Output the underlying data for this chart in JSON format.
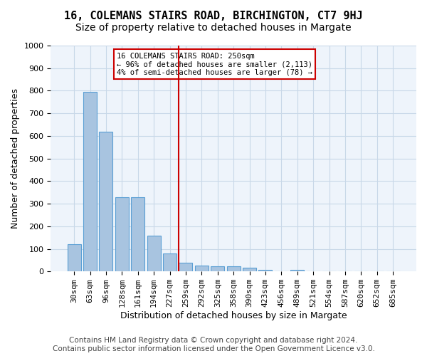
{
  "title": "16, COLEMANS STAIRS ROAD, BIRCHINGTON, CT7 9HJ",
  "subtitle": "Size of property relative to detached houses in Margate",
  "xlabel": "Distribution of detached houses by size in Margate",
  "ylabel": "Number of detached properties",
  "categories": [
    "30sqm",
    "63sqm",
    "96sqm",
    "128sqm",
    "161sqm",
    "194sqm",
    "227sqm",
    "259sqm",
    "292sqm",
    "325sqm",
    "358sqm",
    "390sqm",
    "423sqm",
    "456sqm",
    "489sqm",
    "521sqm",
    "554sqm",
    "587sqm",
    "620sqm",
    "652sqm",
    "685sqm"
  ],
  "values": [
    120,
    795,
    620,
    328,
    328,
    157,
    78,
    38,
    27,
    22,
    22,
    15,
    8,
    0,
    8,
    0,
    0,
    0,
    0,
    0,
    0
  ],
  "bar_color": "#a8c4e0",
  "bar_edge_color": "#5a9fd4",
  "vline_color": "#cc0000",
  "annotation_line1": "16 COLEMANS STAIRS ROAD: 250sqm",
  "annotation_line2": "← 96% of detached houses are smaller (2,113)",
  "annotation_line3": "4% of semi-detached houses are larger (78) →",
  "annotation_box_color": "#cc0000",
  "ylim": [
    0,
    1000
  ],
  "yticks": [
    0,
    100,
    200,
    300,
    400,
    500,
    600,
    700,
    800,
    900,
    1000
  ],
  "grid_color": "#c8d8e8",
  "bg_color": "#eef4fb",
  "footer_line1": "Contains HM Land Registry data © Crown copyright and database right 2024.",
  "footer_line2": "Contains public sector information licensed under the Open Government Licence v3.0.",
  "title_fontsize": 11,
  "subtitle_fontsize": 10,
  "axis_label_fontsize": 9,
  "tick_fontsize": 8,
  "footer_fontsize": 7.5,
  "vline_position": 6.575
}
